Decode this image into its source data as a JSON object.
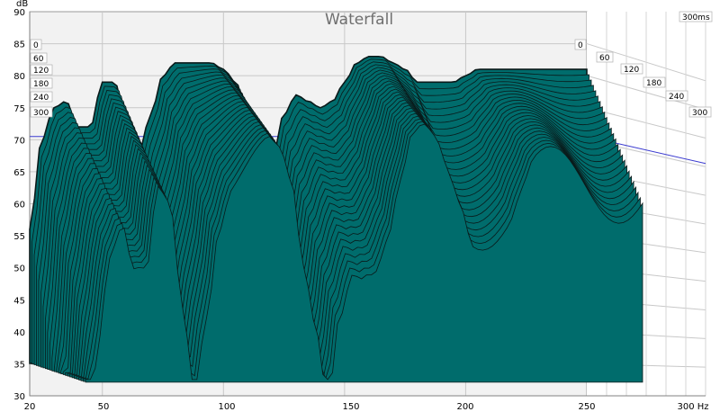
{
  "chart_data": {
    "type": "area",
    "title": "Waterfall",
    "y_unit": "dB",
    "x_unit": "Hz",
    "xlim": [
      20,
      300
    ],
    "ylim": [
      30,
      90
    ],
    "x_ticks": [
      "20",
      "50",
      "100",
      "150",
      "200",
      "250",
      "300 Hz"
    ],
    "y_ticks": [
      "30",
      "35",
      "40",
      "45",
      "50",
      "55",
      "60",
      "65",
      "70",
      "75",
      "80",
      "85"
    ],
    "y_top_label": "90",
    "time_unit_label": "300ms",
    "time_labels_left": [
      "0",
      "60",
      "120",
      "180",
      "240",
      "300"
    ],
    "time_labels_right": [
      "0",
      "60",
      "120",
      "180",
      "240",
      "300"
    ],
    "reference_level_db": 70.5,
    "fill_color": "#006c6c",
    "slice_line_color": "#0a1a1a",
    "front_response": {
      "x": [
        20,
        25,
        30,
        35,
        40,
        45,
        50,
        55,
        60,
        65,
        70,
        75,
        80,
        85,
        90,
        95,
        100,
        105,
        110,
        115,
        120,
        125,
        130,
        135,
        140,
        145,
        150,
        155,
        160,
        165,
        170,
        175,
        180,
        185,
        190,
        195,
        200,
        205,
        210,
        215,
        220,
        225,
        230,
        235,
        240,
        245,
        250
      ],
      "db": [
        56,
        70,
        75,
        76,
        72,
        72,
        79,
        79,
        73,
        68,
        74,
        80,
        82,
        82,
        82,
        82,
        81,
        79,
        74,
        71,
        67,
        74,
        77,
        76,
        75,
        76,
        79,
        82,
        83,
        83,
        82,
        81,
        79,
        79,
        79,
        79,
        80,
        81,
        81,
        81,
        81,
        81,
        81,
        81,
        81,
        81,
        81
      ]
    },
    "slice_count": 26
  }
}
